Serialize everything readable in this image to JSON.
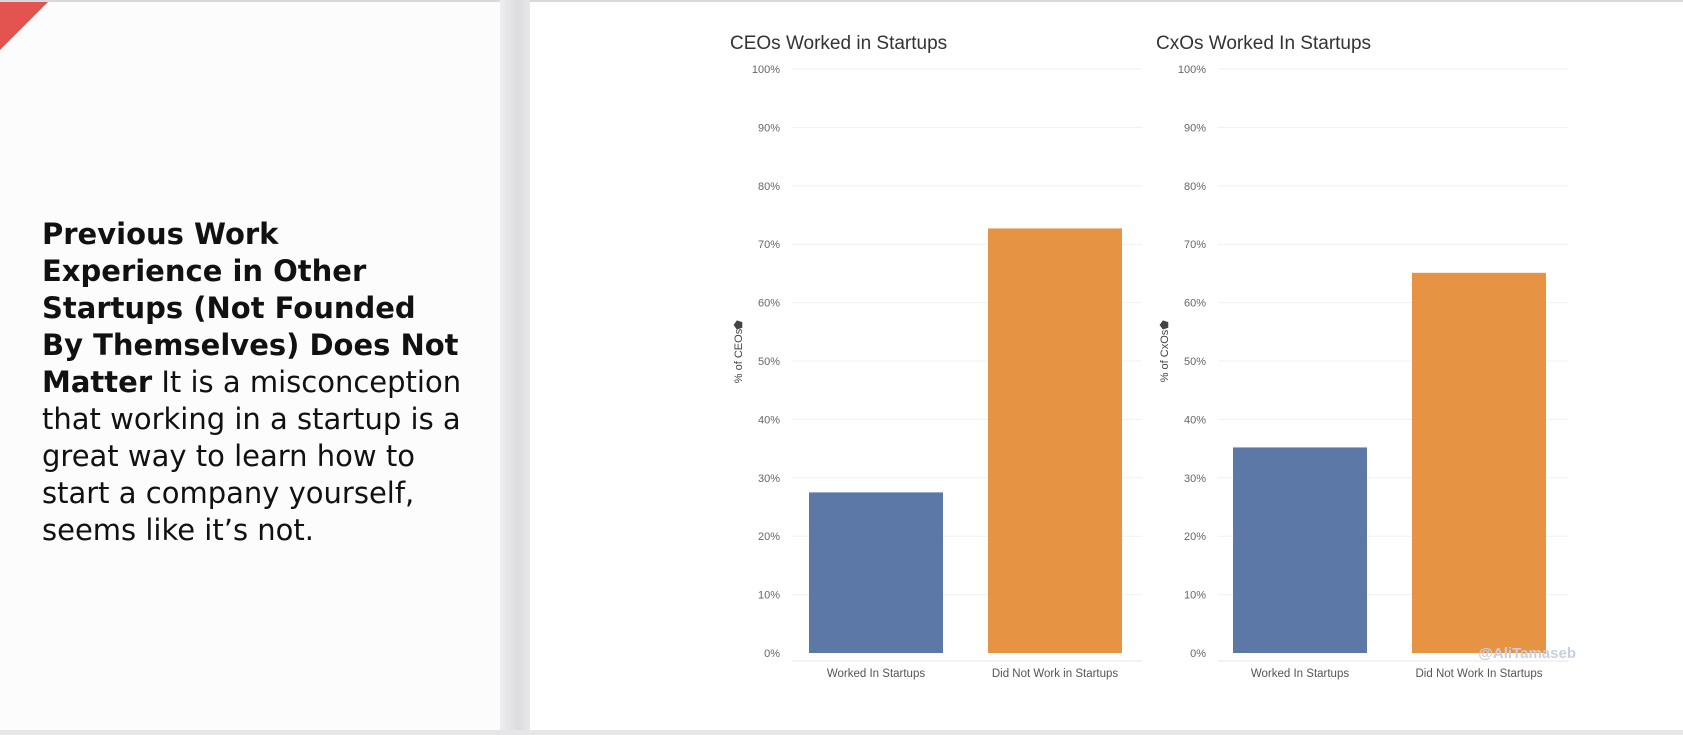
{
  "left_panel": {
    "headline": "Previous Work Experience in Other Startups (Not Founded By Themselves) Does Not Matter",
    "body": "It is a misconception that working in a startup is a great way to learn how to start a company yourself, seems like it’s not.",
    "accent_color": "#e35450"
  },
  "watermark": "@AliTamaseb",
  "colors": {
    "worked": "#5b78a6",
    "did_not_work": "#e69444"
  },
  "chart_data": [
    {
      "type": "bar",
      "title": "CEOs Worked in Startups",
      "ylabel": "% of CEOs",
      "categories": [
        "Worked In Startups",
        "Did Not Work in Startups"
      ],
      "values": [
        27.5,
        72.7
      ],
      "ylim": [
        0,
        100
      ],
      "yticks": [
        "0%",
        "10%",
        "20%",
        "30%",
        "40%",
        "50%",
        "60%",
        "70%",
        "80%",
        "90%",
        "100%"
      ],
      "grid": true
    },
    {
      "type": "bar",
      "title": "CxOs Worked In Startups",
      "ylabel": "% of CxOs",
      "categories": [
        "Worked In Startups",
        "Did Not Work In Startups"
      ],
      "values": [
        35.2,
        65.1
      ],
      "ylim": [
        0,
        100
      ],
      "yticks": [
        "0%",
        "10%",
        "20%",
        "30%",
        "40%",
        "50%",
        "60%",
        "70%",
        "80%",
        "90%",
        "100%"
      ],
      "grid": true
    }
  ]
}
